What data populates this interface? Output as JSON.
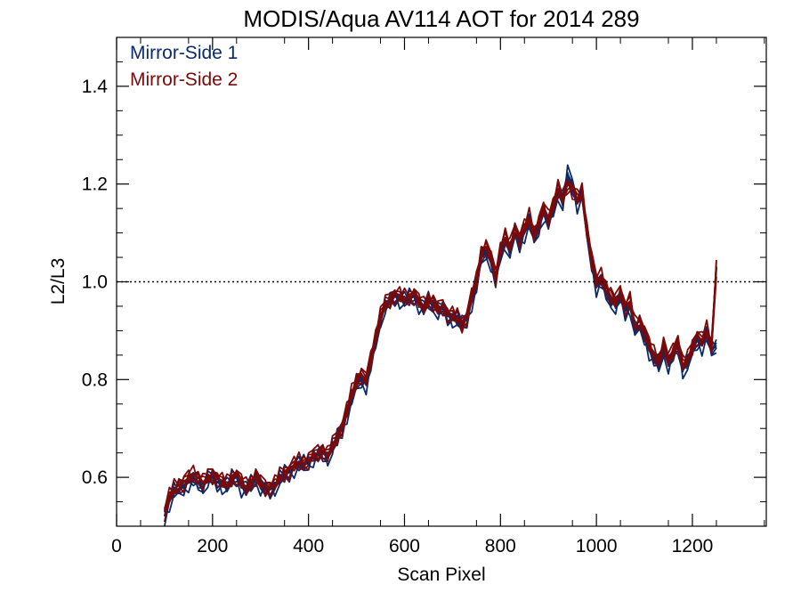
{
  "chart_data": {
    "type": "line",
    "title": "MODIS/Aqua AV114 AOT for 2014 289",
    "xlabel": "Scan Pixel",
    "ylabel": "L2/L3",
    "xlim": [
      0,
      1354
    ],
    "ylim": [
      0.5,
      1.5
    ],
    "x_ticks": [
      0,
      200,
      400,
      600,
      800,
      1000,
      1200
    ],
    "y_ticks": [
      0.6,
      0.8,
      1.0,
      1.2,
      1.4
    ],
    "x_tick_labels": [
      "0",
      "200",
      "400",
      "600",
      "800",
      "1000",
      "1200"
    ],
    "y_tick_labels": [
      "0.6",
      "0.8",
      "1.0",
      "1.2",
      "1.4"
    ],
    "reference_line": {
      "y": 1.0,
      "style": "dotted"
    },
    "legend_position": "top-left",
    "grid": false,
    "series": [
      {
        "name": "Mirror-Side 1",
        "color": "#0a2a6b",
        "x": [
          100,
          110,
          120,
          130,
          140,
          150,
          160,
          170,
          180,
          190,
          200,
          210,
          220,
          230,
          240,
          250,
          260,
          270,
          280,
          290,
          300,
          310,
          320,
          330,
          340,
          350,
          360,
          370,
          380,
          390,
          400,
          410,
          420,
          430,
          440,
          450,
          460,
          470,
          480,
          490,
          500,
          510,
          520,
          530,
          540,
          550,
          560,
          570,
          580,
          590,
          600,
          610,
          620,
          630,
          640,
          650,
          660,
          670,
          680,
          690,
          700,
          710,
          720,
          730,
          740,
          750,
          760,
          770,
          780,
          790,
          800,
          810,
          820,
          830,
          840,
          850,
          860,
          870,
          880,
          890,
          900,
          910,
          920,
          930,
          940,
          950,
          960,
          970,
          980,
          990,
          1000,
          1010,
          1020,
          1030,
          1040,
          1050,
          1060,
          1070,
          1080,
          1090,
          1100,
          1110,
          1120,
          1130,
          1140,
          1150,
          1160,
          1170,
          1180,
          1190,
          1200,
          1210,
          1220,
          1230,
          1240,
          1250
        ],
        "y": [
          0.52,
          0.55,
          0.57,
          0.575,
          0.58,
          0.59,
          0.595,
          0.59,
          0.58,
          0.595,
          0.6,
          0.59,
          0.585,
          0.58,
          0.595,
          0.6,
          0.58,
          0.575,
          0.585,
          0.6,
          0.58,
          0.575,
          0.575,
          0.58,
          0.595,
          0.605,
          0.61,
          0.62,
          0.625,
          0.625,
          0.63,
          0.64,
          0.645,
          0.65,
          0.64,
          0.66,
          0.68,
          0.7,
          0.73,
          0.76,
          0.79,
          0.8,
          0.79,
          0.83,
          0.88,
          0.92,
          0.95,
          0.96,
          0.97,
          0.965,
          0.96,
          0.965,
          0.97,
          0.955,
          0.945,
          0.96,
          0.95,
          0.94,
          0.945,
          0.93,
          0.925,
          0.92,
          0.91,
          0.925,
          0.96,
          0.99,
          1.05,
          1.06,
          1.04,
          1.0,
          1.06,
          1.08,
          1.06,
          1.1,
          1.08,
          1.1,
          1.12,
          1.09,
          1.11,
          1.14,
          1.12,
          1.15,
          1.18,
          1.16,
          1.22,
          1.2,
          1.16,
          1.18,
          1.1,
          1.04,
          0.99,
          1.0,
          0.98,
          0.96,
          0.95,
          0.97,
          0.94,
          0.95,
          0.9,
          0.91,
          0.89,
          0.86,
          0.84,
          0.83,
          0.86,
          0.83,
          0.85,
          0.87,
          0.82,
          0.83,
          0.86,
          0.88,
          0.87,
          0.89,
          0.86,
          0.87
        ]
      },
      {
        "name": "Mirror-Side 2",
        "color": "#7a0a0a",
        "x": [
          100,
          110,
          120,
          130,
          140,
          150,
          160,
          170,
          180,
          190,
          200,
          210,
          220,
          230,
          240,
          250,
          260,
          270,
          280,
          290,
          300,
          310,
          320,
          330,
          340,
          350,
          360,
          370,
          380,
          390,
          400,
          410,
          420,
          430,
          440,
          450,
          460,
          470,
          480,
          490,
          500,
          510,
          520,
          530,
          540,
          550,
          560,
          570,
          580,
          590,
          600,
          610,
          620,
          630,
          640,
          650,
          660,
          670,
          680,
          690,
          700,
          710,
          720,
          730,
          740,
          750,
          760,
          770,
          780,
          790,
          800,
          810,
          820,
          830,
          840,
          850,
          860,
          870,
          880,
          890,
          900,
          910,
          920,
          930,
          940,
          950,
          960,
          970,
          980,
          990,
          1000,
          1010,
          1020,
          1030,
          1040,
          1050,
          1060,
          1070,
          1080,
          1090,
          1100,
          1110,
          1120,
          1130,
          1140,
          1150,
          1160,
          1170,
          1180,
          1190,
          1200,
          1210,
          1220,
          1230,
          1240,
          1250
        ],
        "y": [
          0.53,
          0.56,
          0.575,
          0.585,
          0.59,
          0.6,
          0.605,
          0.6,
          0.59,
          0.6,
          0.605,
          0.6,
          0.59,
          0.585,
          0.6,
          0.605,
          0.59,
          0.58,
          0.59,
          0.6,
          0.59,
          0.58,
          0.58,
          0.585,
          0.6,
          0.61,
          0.615,
          0.625,
          0.63,
          0.63,
          0.635,
          0.645,
          0.65,
          0.655,
          0.645,
          0.665,
          0.685,
          0.705,
          0.735,
          0.77,
          0.8,
          0.81,
          0.8,
          0.84,
          0.89,
          0.93,
          0.955,
          0.965,
          0.975,
          0.97,
          0.965,
          0.97,
          0.975,
          0.96,
          0.95,
          0.965,
          0.955,
          0.945,
          0.95,
          0.935,
          0.93,
          0.925,
          0.915,
          0.93,
          0.97,
          1.0,
          1.06,
          1.07,
          1.05,
          1.01,
          1.07,
          1.09,
          1.07,
          1.11,
          1.09,
          1.11,
          1.13,
          1.1,
          1.12,
          1.15,
          1.13,
          1.16,
          1.19,
          1.17,
          1.2,
          1.19,
          1.17,
          1.18,
          1.11,
          1.05,
          1.0,
          1.01,
          0.99,
          0.97,
          0.96,
          0.98,
          0.95,
          0.96,
          0.91,
          0.92,
          0.9,
          0.87,
          0.85,
          0.84,
          0.87,
          0.84,
          0.86,
          0.88,
          0.83,
          0.84,
          0.87,
          0.89,
          0.88,
          0.9,
          0.87,
          1.03
        ]
      }
    ]
  }
}
